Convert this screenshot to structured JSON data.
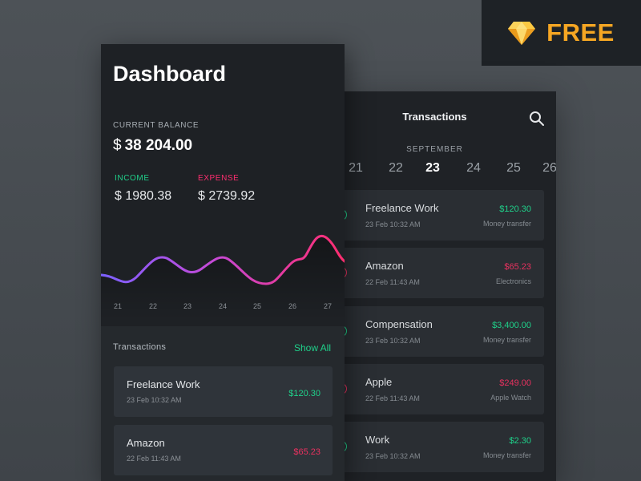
{
  "badge": {
    "text": "FREE",
    "accent": "#f5a623",
    "icon": "sketch-diamond-icon"
  },
  "dashboard": {
    "title": "Dashboard",
    "balance_label": "CURRENT BALANCE",
    "currency": "$",
    "balance_value": "38 204.00",
    "income_label": "INCOME",
    "income_value": "$ 1980.38",
    "expense_label": "EXPENSE",
    "expense_value": "$ 2739.92",
    "chart_days": [
      "21",
      "22",
      "23",
      "24",
      "25",
      "26",
      "27"
    ],
    "transactions_title": "Transactions",
    "show_all": "Show All",
    "transactions": [
      {
        "name": "Freelance Work",
        "date": "23 Feb 10:32 AM",
        "amount": "$120.30",
        "type": "income"
      },
      {
        "name": "Amazon",
        "date": "22 Feb 11:43 AM",
        "amount": "$65.23",
        "type": "expense"
      }
    ]
  },
  "transactions_screen": {
    "title": "Transactions",
    "month": "SEPTEMBER",
    "days": [
      "21",
      "22",
      "23",
      "24",
      "25",
      "26"
    ],
    "selected_day": "23",
    "items": [
      {
        "name": "Freelance Work",
        "date": "23 Feb 10:32 AM",
        "amount": "$120.30",
        "category": "Money transfer",
        "type": "income"
      },
      {
        "name": "Amazon",
        "date": "22 Feb 11:43 AM",
        "amount": "$65.23",
        "category": "Electronics",
        "type": "expense"
      },
      {
        "name": "Compensation",
        "date": "23 Feb 10:32 AM",
        "amount": "$3,400.00",
        "category": "Money transfer",
        "type": "income"
      },
      {
        "name": "Apple",
        "date": "22 Feb 11:43 AM",
        "amount": "$249.00",
        "category": "Apple Watch",
        "type": "expense"
      },
      {
        "name": "Work",
        "date": "23 Feb 10:32 AM",
        "amount": "$2.30",
        "category": "Money transfer",
        "type": "income"
      }
    ]
  },
  "colors": {
    "income": "#1fd18a",
    "expense": "#e8315f",
    "chart_start": "#8b5cf6",
    "chart_end": "#ff2d6f"
  }
}
